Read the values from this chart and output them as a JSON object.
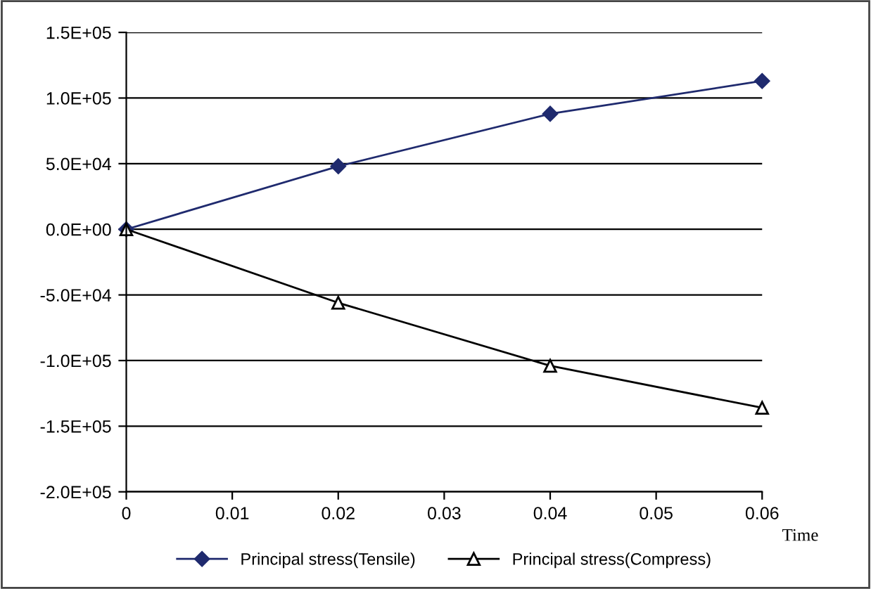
{
  "chart_data": {
    "type": "line",
    "xlabel": "Time",
    "x": [
      0,
      0.02,
      0.04,
      0.06
    ],
    "series": [
      {
        "name": "Principal stress(Tensile)",
        "color": "#1f2a6e",
        "marker": "diamond",
        "values": [
          0,
          48000,
          88000,
          113000
        ]
      },
      {
        "name": "Principal stress(Compress)",
        "color": "#000000",
        "marker": "triangle",
        "values": [
          0,
          -56000,
          -104000,
          -136000
        ]
      }
    ],
    "xlim": [
      0,
      0.06
    ],
    "xticks": [
      0,
      0.01,
      0.02,
      0.03,
      0.04,
      0.05,
      0.06
    ],
    "ylim": [
      -200000,
      150000
    ],
    "yticks": [
      {
        "value": -200000,
        "label": "-2.0E+05"
      },
      {
        "value": -150000,
        "label": "-1.5E+05"
      },
      {
        "value": -100000,
        "label": "-1.0E+05"
      },
      {
        "value": -50000,
        "label": "-5.0E+04"
      },
      {
        "value": 0,
        "label": "0.0E+00"
      },
      {
        "value": 50000,
        "label": "5.0E+04"
      },
      {
        "value": 100000,
        "label": "1.0E+05"
      },
      {
        "value": 150000,
        "label": "1.5E+05"
      }
    ],
    "grid": "y",
    "legend": "bottom"
  }
}
